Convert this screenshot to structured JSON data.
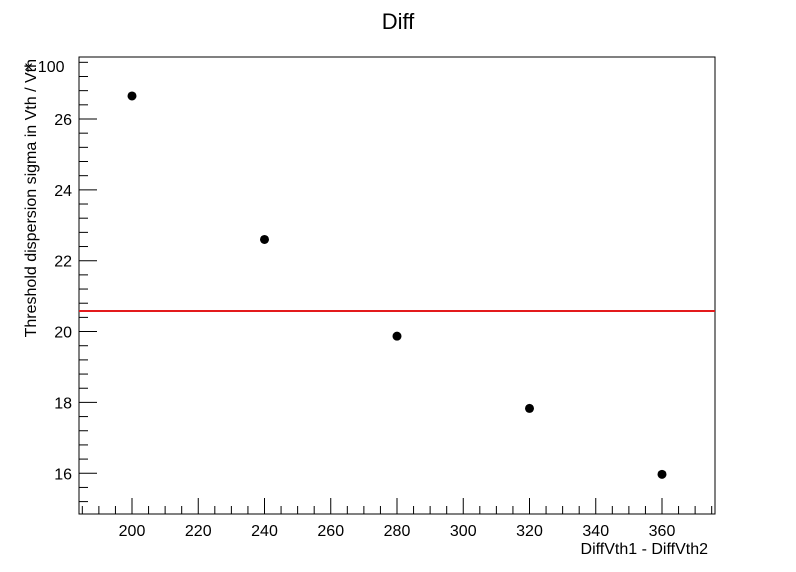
{
  "chart_data": {
    "type": "scatter",
    "title": "Diff",
    "xlabel": "DiffVth1 - DiffVth2",
    "ylabel": "Threshold dispersion sigma in Vth / Vth",
    "y_multiplier_label": "× 100",
    "xlim": [
      184,
      376
    ],
    "ylim": [
      14.85,
      27.75
    ],
    "x_ticks": [
      200,
      220,
      240,
      260,
      280,
      300,
      320,
      340,
      360
    ],
    "y_ticks": [
      16,
      18,
      20,
      22,
      24,
      26
    ],
    "points": [
      {
        "x": 200,
        "y": 26.65
      },
      {
        "x": 240,
        "y": 22.6
      },
      {
        "x": 280,
        "y": 19.87
      },
      {
        "x": 320,
        "y": 17.83
      },
      {
        "x": 360,
        "y": 15.97
      }
    ],
    "reference_line": {
      "y": 20.58,
      "color": "#e31a1c"
    },
    "point_color": "#000000",
    "grid": false,
    "legend": "none"
  }
}
